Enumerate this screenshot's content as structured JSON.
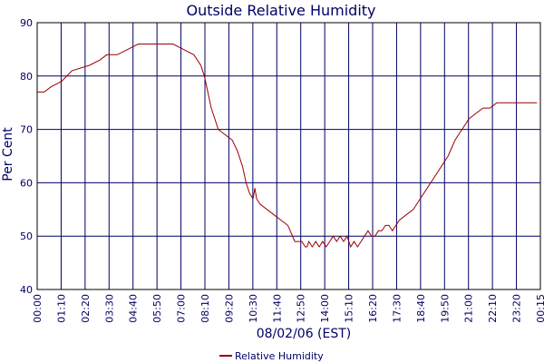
{
  "chart_data": {
    "type": "line",
    "title": "Outside Relative Humidity",
    "xlabel": "08/02/06 (EST)",
    "ylabel": "Per Cent",
    "ylim": [
      40,
      90
    ],
    "y_ticks": [
      40,
      50,
      60,
      70,
      80,
      90
    ],
    "x_ticks": [
      "00:00",
      "01:10",
      "02:20",
      "03:30",
      "04:40",
      "05:50",
      "07:00",
      "08:10",
      "09:20",
      "10:30",
      "11:40",
      "12:50",
      "14:00",
      "15:10",
      "16:20",
      "17:30",
      "18:40",
      "19:50",
      "21:00",
      "22:10",
      "23:20",
      "00:15"
    ],
    "grid": true,
    "legend_position": "bottom-center",
    "colors": {
      "line": "#990000",
      "grid": "#000066",
      "text": "#000066",
      "axis": "#000000"
    },
    "series": [
      {
        "name": "Relative Humidity",
        "x_minutes": [
          0,
          20,
          40,
          70,
          100,
          150,
          180,
          200,
          230,
          260,
          290,
          320,
          350,
          370,
          390,
          420,
          450,
          470,
          480,
          490,
          500,
          510,
          520,
          540,
          560,
          575,
          590,
          600,
          610,
          620,
          625,
          630,
          640,
          660,
          680,
          700,
          720,
          740,
          760,
          770,
          775,
          780,
          790,
          800,
          810,
          820,
          830,
          840,
          850,
          860,
          870,
          880,
          890,
          900,
          910,
          920,
          930,
          940,
          950,
          960,
          970,
          980,
          990,
          1000,
          1010,
          1020,
          1030,
          1040,
          1060,
          1080,
          1100,
          1120,
          1140,
          1160,
          1180,
          1200,
          1220,
          1240,
          1260,
          1280,
          1300,
          1320,
          1340,
          1360,
          1380,
          1400,
          1415,
          1425,
          1435
        ],
        "values": [
          77,
          77,
          78,
          79,
          81,
          82,
          83,
          84,
          84,
          85,
          86,
          86,
          86,
          86,
          86,
          85,
          84,
          82,
          80,
          77,
          74,
          72,
          70,
          69,
          68,
          66,
          63,
          60,
          58,
          57,
          59,
          57,
          56,
          55,
          54,
          53,
          52,
          49,
          49,
          48,
          48,
          49,
          48,
          49,
          48,
          49,
          48,
          49,
          50,
          49,
          50,
          49,
          50,
          48,
          49,
          48,
          49,
          50,
          51,
          50,
          50,
          51,
          51,
          52,
          52,
          51,
          52,
          53,
          54,
          55,
          57,
          59,
          61,
          63,
          65,
          68,
          70,
          72,
          73,
          74,
          74,
          75,
          75,
          75,
          75,
          75,
          75,
          75,
          75
        ]
      }
    ]
  }
}
